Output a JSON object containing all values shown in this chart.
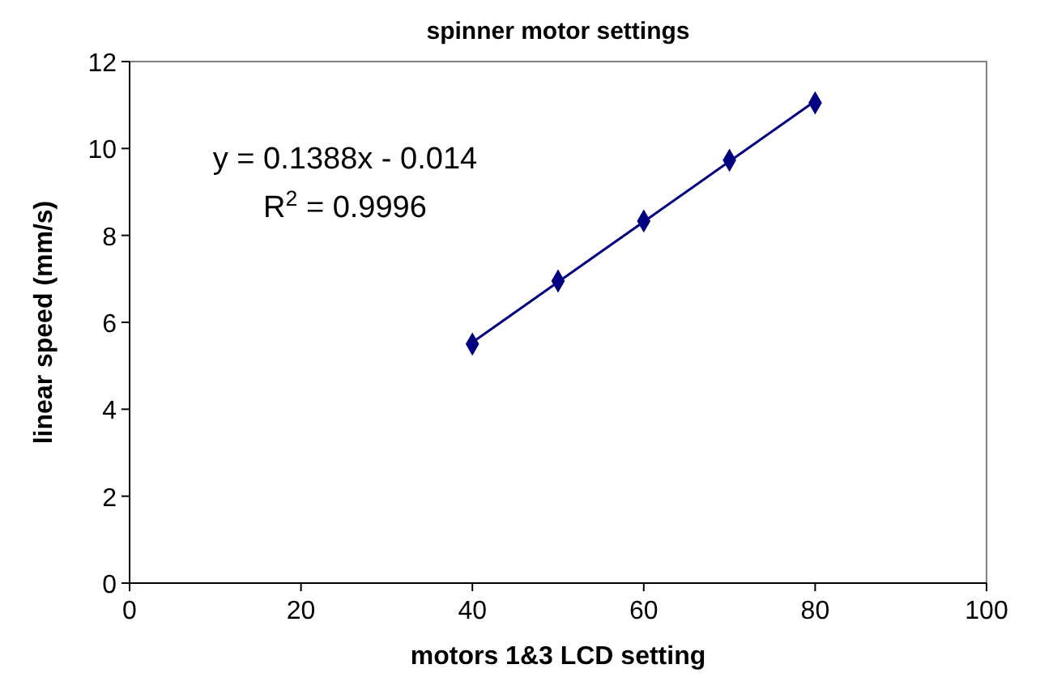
{
  "chart_data": {
    "type": "scatter",
    "title": "spinner motor settings",
    "xlabel": "motors 1&3 LCD setting",
    "ylabel": "linear speed (mm/s)",
    "x": [
      40,
      50,
      60,
      70,
      80
    ],
    "series": [
      {
        "type": "scatter",
        "color": "#000080",
        "marker": "diamond",
        "values": [
          5.5,
          6.95,
          8.33,
          9.73,
          11.05
        ]
      },
      {
        "type": "line",
        "color": "#000080",
        "marker": "none",
        "x": [
          40,
          80
        ],
        "values": [
          5.54,
          11.09
        ]
      }
    ],
    "xlim": [
      0,
      100
    ],
    "xticks": [
      0,
      20,
      40,
      60,
      80,
      100
    ],
    "ylim": [
      0,
      12
    ],
    "yticks": [
      0,
      2,
      4,
      6,
      8,
      10,
      12
    ],
    "grid": false,
    "annotations": [
      "y = 0.1388x - 0.014",
      "R$^{2}$ = 0.9996"
    ]
  }
}
